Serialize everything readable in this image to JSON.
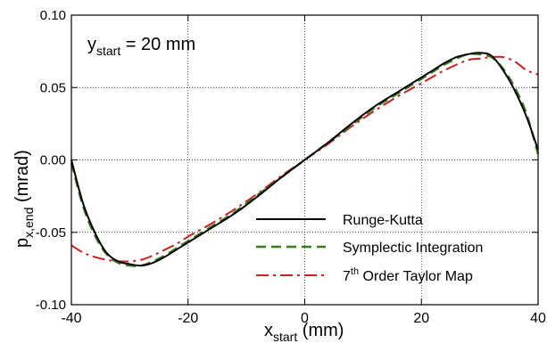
{
  "chart_data": {
    "type": "line",
    "xlim": [
      -40,
      40
    ],
    "ylim": [
      -0.1,
      0.1
    ],
    "xticks": [
      -40,
      -20,
      0,
      20,
      40
    ],
    "xtick_labels": [
      "-40",
      "-20",
      "0",
      "20",
      "40"
    ],
    "yticks": [
      -0.1,
      -0.05,
      0.0,
      0.05,
      0.1
    ],
    "ytick_labels": [
      "-0.10",
      "-0.05",
      "0.00",
      "0.05",
      "0.10"
    ],
    "grid": true,
    "xlabel": {
      "base": "x",
      "sub": "start",
      "rest": " (mm)"
    },
    "ylabel": {
      "base": "p",
      "sub": "x,end",
      "rest": " (mrad)"
    },
    "annotation": {
      "base": "y",
      "sub": "start",
      "rest": " = 20 mm"
    },
    "legend_position": "bottom-right",
    "series": [
      {
        "name": "Runge-Kutta",
        "color": "#000000",
        "dash": "solid",
        "x": [
          -40,
          -38,
          -36,
          -34,
          -32,
          -30,
          -28,
          -26,
          -24,
          -22,
          -20,
          -16,
          -12,
          -8,
          -4,
          0,
          4,
          8,
          12,
          16,
          20,
          22,
          24,
          26,
          28,
          30,
          32,
          34,
          36,
          38,
          40
        ],
        "y": [
          0.0,
          -0.03,
          -0.05,
          -0.064,
          -0.07,
          -0.072,
          -0.073,
          -0.071,
          -0.067,
          -0.062,
          -0.057,
          -0.047,
          -0.037,
          -0.025,
          -0.012,
          0.0,
          0.012,
          0.025,
          0.037,
          0.047,
          0.057,
          0.062,
          0.067,
          0.071,
          0.073,
          0.074,
          0.072,
          0.062,
          0.048,
          0.03,
          0.007
        ]
      },
      {
        "name": "Symplectic Integration",
        "color": "#3a7a1e",
        "dash": "dashed",
        "x": [
          -40,
          -38,
          -36,
          -34,
          -32,
          -30,
          -28,
          -26,
          -24,
          -22,
          -20,
          -16,
          -12,
          -8,
          -4,
          0,
          4,
          8,
          12,
          16,
          20,
          22,
          24,
          26,
          28,
          30,
          32,
          34,
          36,
          38,
          40
        ],
        "y": [
          -0.002,
          -0.032,
          -0.052,
          -0.065,
          -0.071,
          -0.073,
          -0.073,
          -0.07,
          -0.066,
          -0.061,
          -0.056,
          -0.046,
          -0.036,
          -0.024,
          -0.012,
          0.0,
          0.012,
          0.024,
          0.036,
          0.046,
          0.056,
          0.061,
          0.066,
          0.07,
          0.073,
          0.073,
          0.071,
          0.063,
          0.05,
          0.032,
          0.004
        ]
      },
      {
        "name": "7th Order Taylor Map",
        "legend_base": "7",
        "legend_sup": "th",
        "legend_rest": " Order Taylor Map",
        "color": "#cc1f1f",
        "dash": "dashdot",
        "x": [
          -40,
          -38,
          -36,
          -34,
          -32,
          -30,
          -28,
          -26,
          -24,
          -22,
          -20,
          -16,
          -12,
          -8,
          -4,
          0,
          4,
          8,
          12,
          16,
          20,
          24,
          28,
          30,
          32,
          34,
          36,
          38,
          40
        ],
        "y": [
          -0.059,
          -0.064,
          -0.067,
          -0.069,
          -0.07,
          -0.07,
          -0.069,
          -0.066,
          -0.062,
          -0.058,
          -0.053,
          -0.044,
          -0.034,
          -0.023,
          -0.011,
          0.0,
          0.011,
          0.023,
          0.034,
          0.044,
          0.053,
          0.062,
          0.069,
          0.07,
          0.071,
          0.071,
          0.068,
          0.062,
          0.059
        ]
      }
    ]
  }
}
